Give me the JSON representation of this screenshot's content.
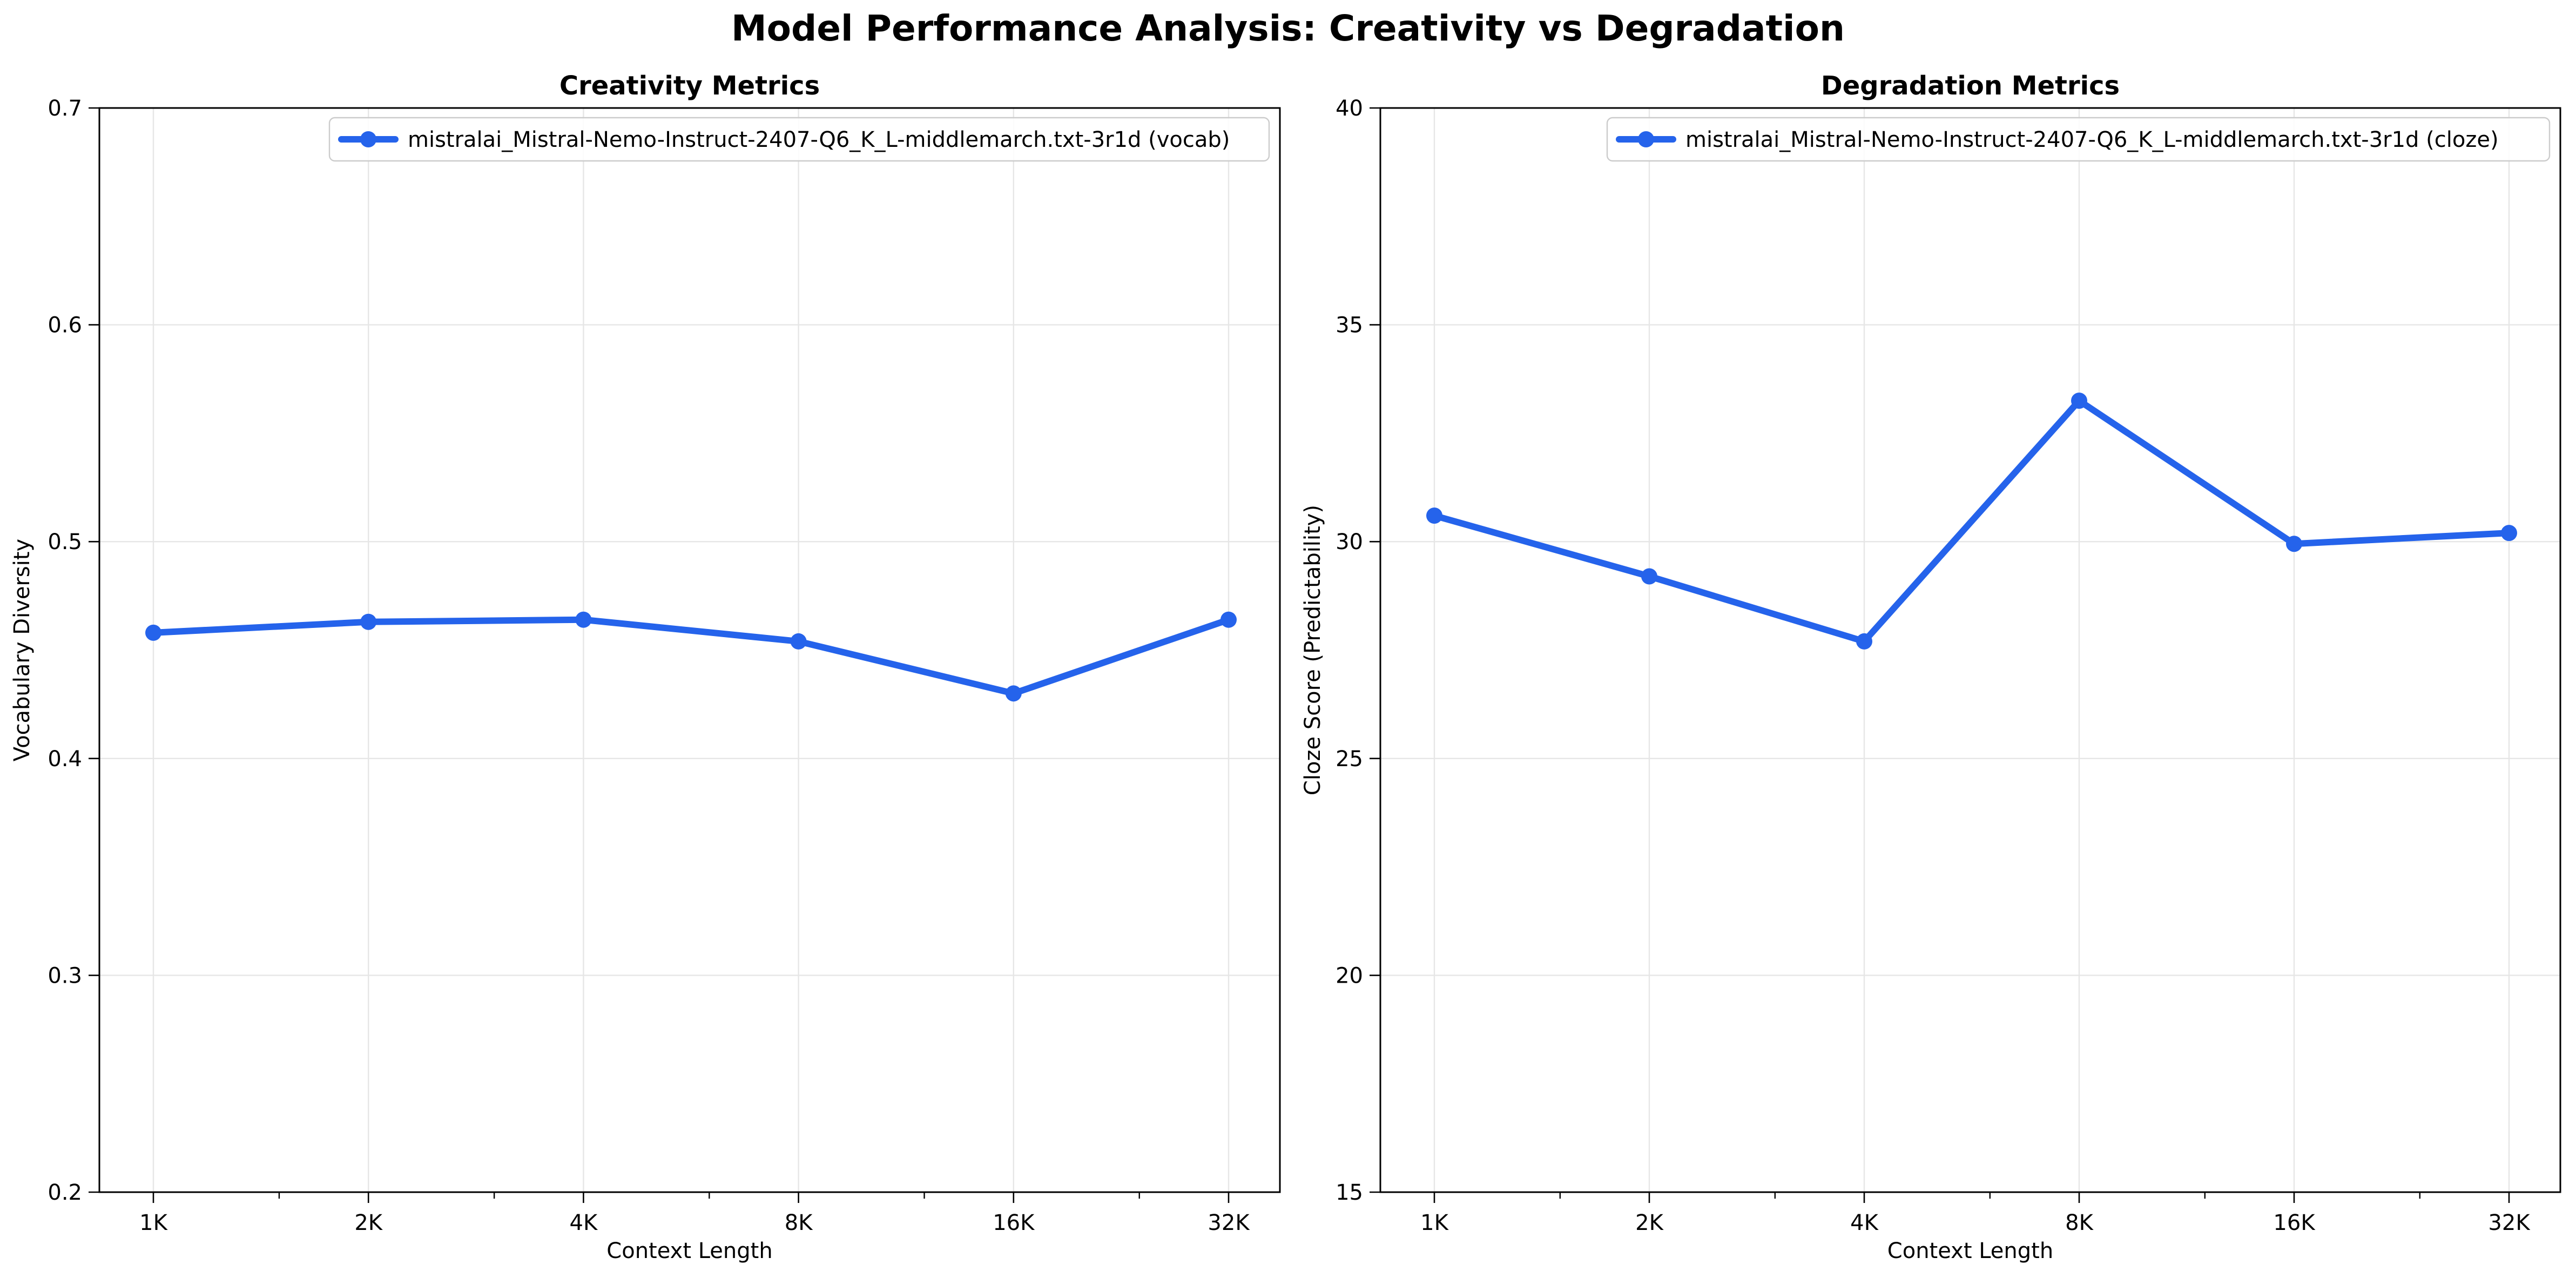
{
  "figure": {
    "title": "Model Performance Analysis: Creativity vs Degradation"
  },
  "chart_data": [
    {
      "type": "line",
      "title": "Creativity Metrics",
      "xlabel": "Context Length",
      "ylabel": "Vocabulary Diversity",
      "x_scale": "log2",
      "categories": [
        "1K",
        "2K",
        "4K",
        "8K",
        "16K",
        "32K"
      ],
      "ylim": [
        0.2,
        0.7
      ],
      "yticks": [
        "0.2",
        "0.3",
        "0.4",
        "0.5",
        "0.6",
        "0.7"
      ],
      "grid": true,
      "legend_position": "top-right",
      "series": [
        {
          "name": "mistralai_Mistral-Nemo-Instruct-2407-Q6_K_L-middlemarch.txt-3r1d (vocab)",
          "color": "#2563eb",
          "marker": "circle",
          "values": [
            0.458,
            0.463,
            0.464,
            0.454,
            0.43,
            0.464
          ]
        }
      ]
    },
    {
      "type": "line",
      "title": "Degradation Metrics",
      "xlabel": "Context Length",
      "ylabel": "Cloze Score (Predictability)",
      "x_scale": "log2",
      "categories": [
        "1K",
        "2K",
        "4K",
        "8K",
        "16K",
        "32K"
      ],
      "ylim": [
        15,
        40
      ],
      "yticks": [
        "15",
        "20",
        "25",
        "30",
        "35",
        "40"
      ],
      "grid": true,
      "legend_position": "top-right",
      "series": [
        {
          "name": "mistralai_Mistral-Nemo-Instruct-2407-Q6_K_L-middlemarch.txt-3r1d (cloze)",
          "color": "#2563eb",
          "marker": "circle",
          "values": [
            30.6,
            29.2,
            27.7,
            33.25,
            29.95,
            30.2
          ]
        }
      ]
    }
  ]
}
